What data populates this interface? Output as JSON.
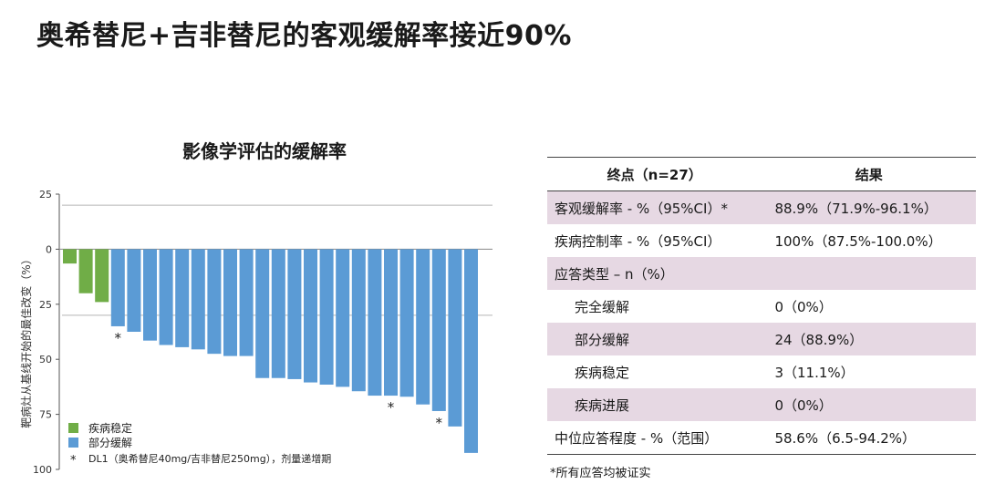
{
  "page": {
    "title": "奥希替尼+吉非替尼的客观缓解率接近90%"
  },
  "chart_data": {
    "type": "bar",
    "title": "影像学评估的缓解率",
    "ylabel": "靶病灶从基线开始的最佳改变（%）",
    "xlabel": "",
    "ylim": [
      -100,
      25
    ],
    "yticks": [
      25,
      0,
      -25,
      -50,
      -75,
      -100
    ],
    "ytick_labels": [
      "25",
      "0",
      "25",
      "50",
      "75",
      "100"
    ],
    "reference_lines": [
      20,
      -30
    ],
    "values": [
      -6.5,
      -20,
      -24,
      -35,
      -37.5,
      -41.5,
      -43.5,
      -44.5,
      -45.5,
      -47.5,
      -48.5,
      -48.5,
      -58.5,
      -58.5,
      -59,
      -60.5,
      -61.5,
      -62.5,
      -64.5,
      -66.5,
      -66.5,
      -67,
      -70.5,
      -73.5,
      -80.5,
      -92.5
    ],
    "series": [
      {
        "name": "疾病稳定",
        "color": "#70ad47"
      },
      {
        "name": "部分缓解",
        "color": "#5b9bd5"
      }
    ],
    "bar_series": [
      0,
      0,
      0,
      1,
      1,
      1,
      1,
      1,
      1,
      1,
      1,
      1,
      1,
      1,
      1,
      1,
      1,
      1,
      1,
      1,
      1,
      1,
      1,
      1,
      1,
      1
    ],
    "dl1_markers": [
      3,
      20,
      23
    ],
    "marker_symbol": "*",
    "marker_note": "DL1（奥希替尼40mg/吉非替尼250mg），剂量递增期"
  },
  "table": {
    "headers": [
      "终点（n=27）",
      "结果"
    ],
    "rows": [
      {
        "label": "客观缓解率 - %（95%CI）*",
        "value": "88.9%（71.9%-96.1%）"
      },
      {
        "label": "疾病控制率 - %（95%CI）",
        "value": "100%（87.5%-100.0%）"
      },
      {
        "label": "应答类型 – n（%）",
        "value": ""
      },
      {
        "label": "完全缓解",
        "value": "0（0%）"
      },
      {
        "label": "部分缓解",
        "value": "24（88.9%）"
      },
      {
        "label": "疾病稳定",
        "value": "3（11.1%）"
      },
      {
        "label": "疾病进展",
        "value": "0（0%）"
      },
      {
        "label": "中位应答程度 - %（范围）",
        "value": "58.6%（6.5-94.2%）"
      }
    ],
    "footnote": "*所有应答均被证实"
  }
}
